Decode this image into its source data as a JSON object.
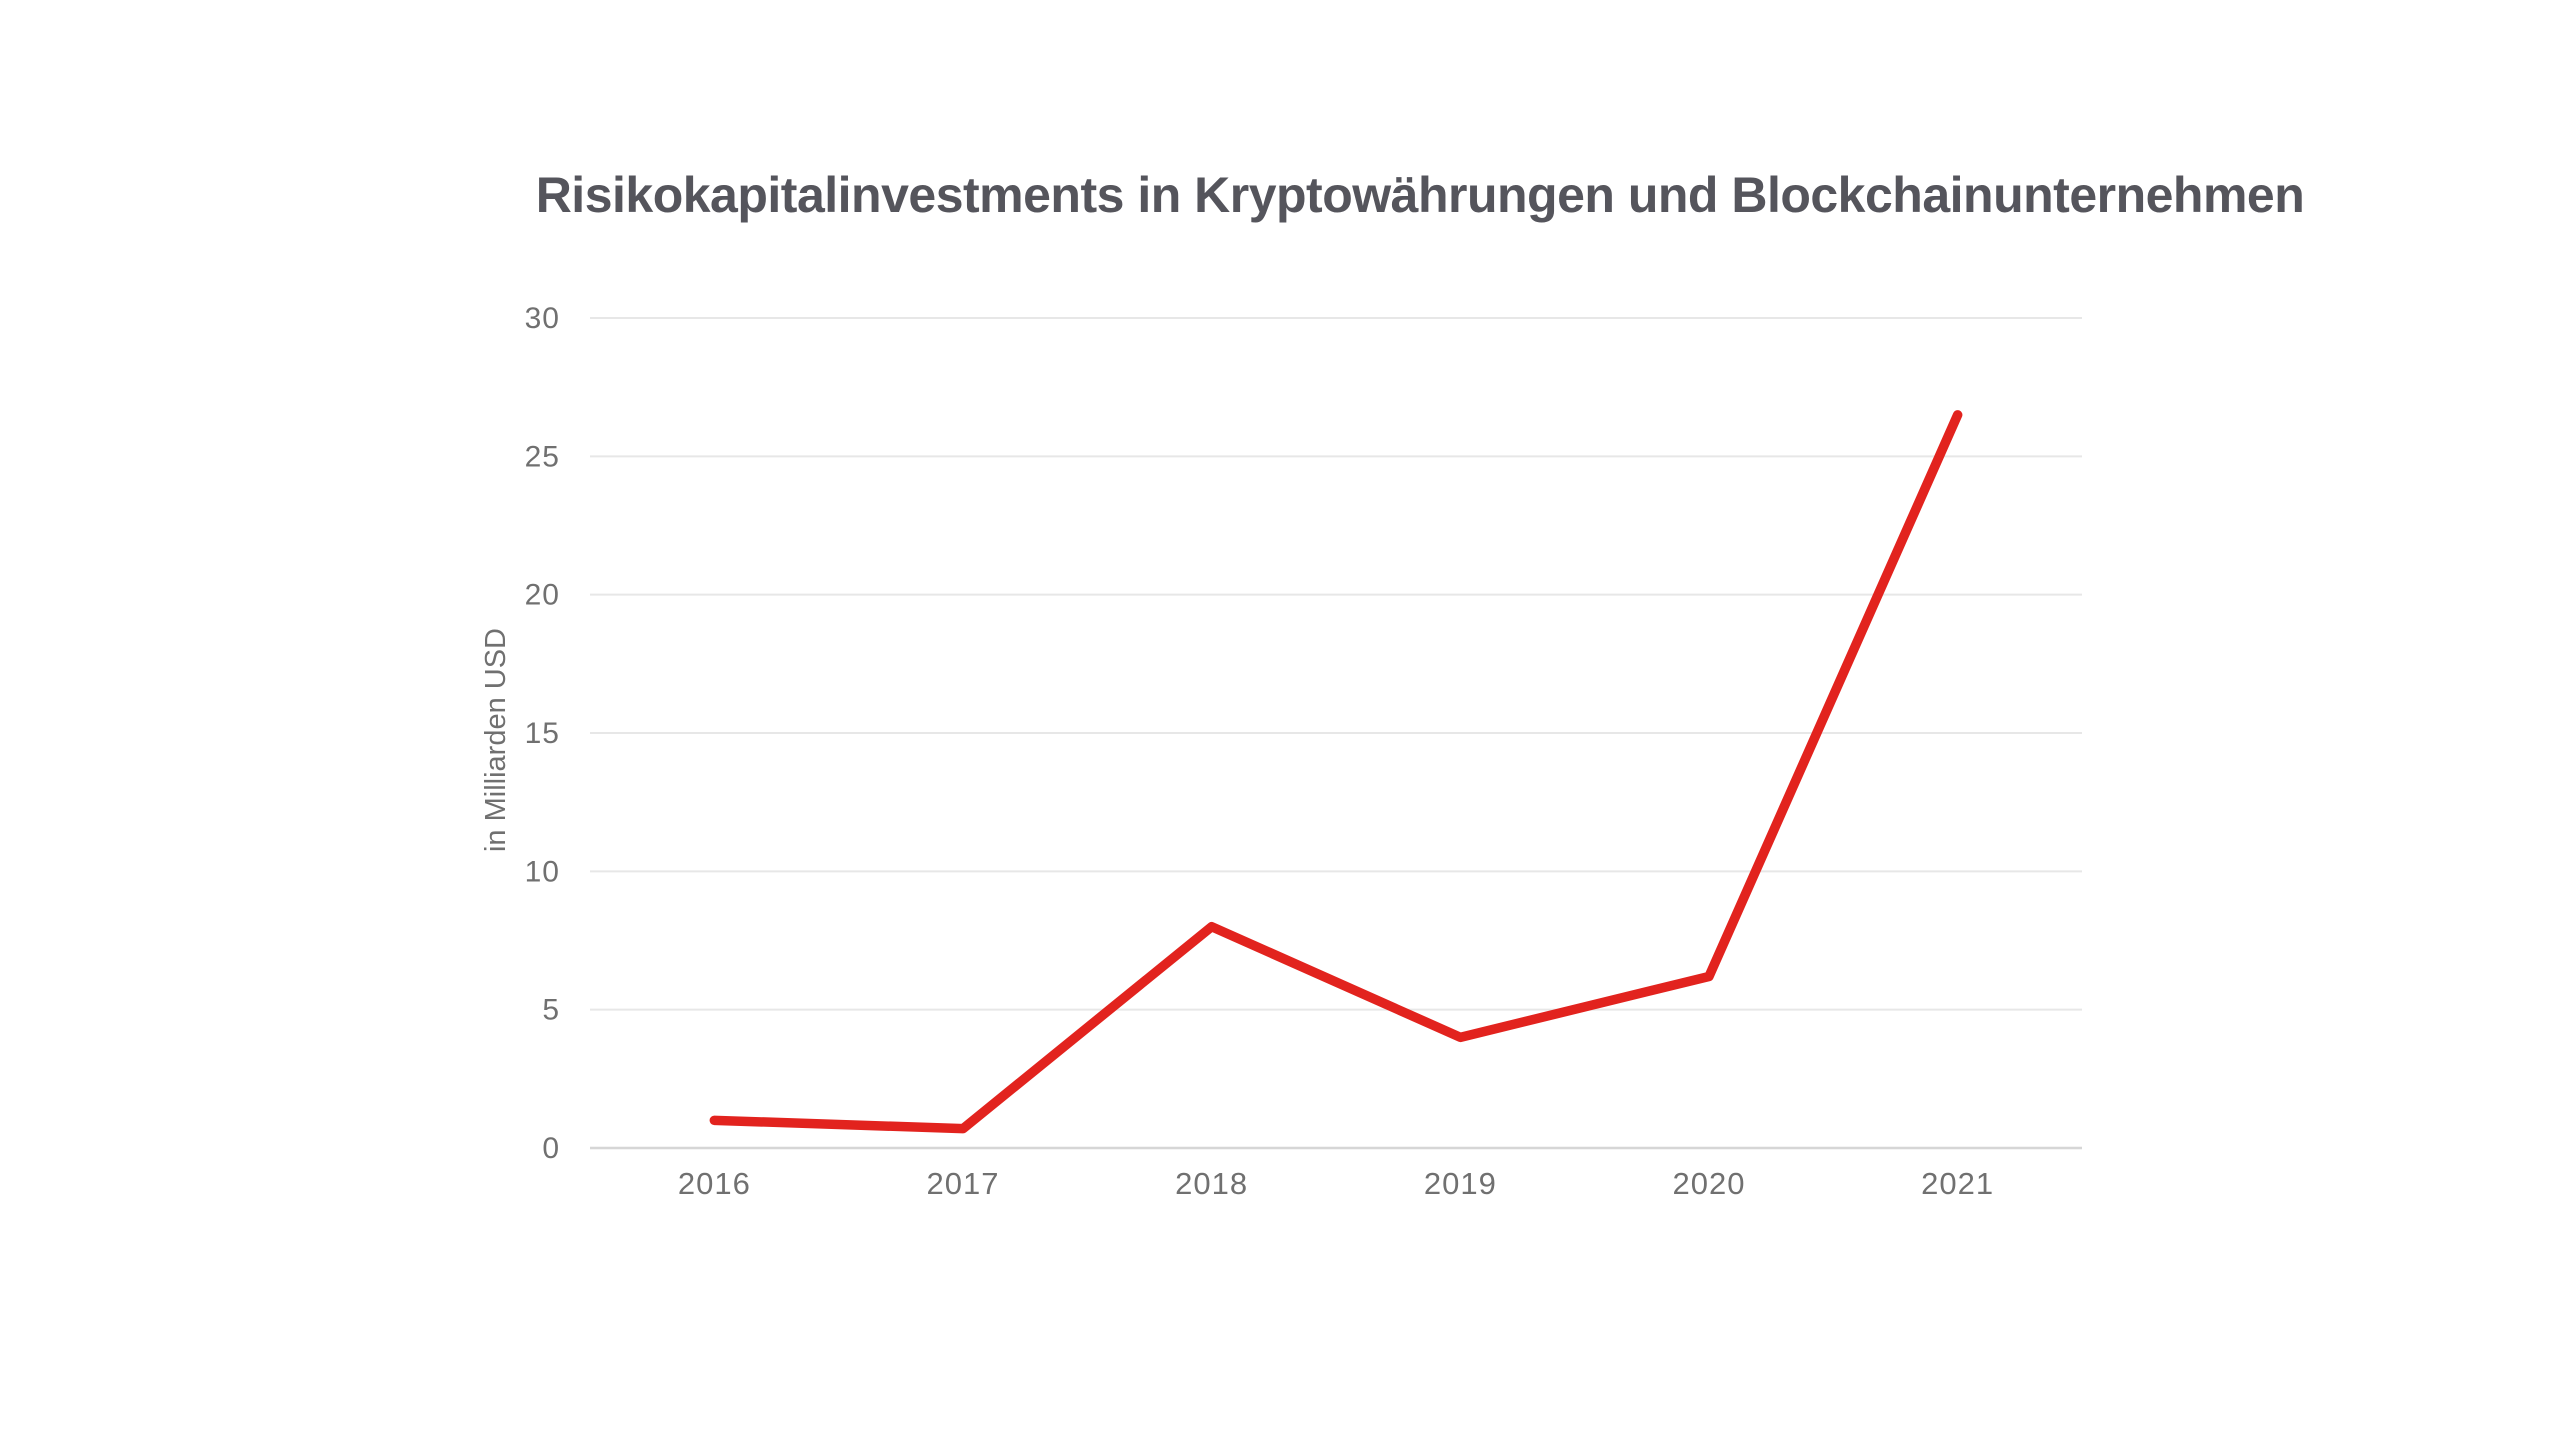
{
  "chart_data": {
    "type": "line",
    "title": "Risikokapitalinvestments in Kryptowährungen und Blockchainunternehmen",
    "ylabel": "in Milliarden USD",
    "xlabel": "",
    "categories": [
      "2016",
      "2017",
      "2018",
      "2019",
      "2020",
      "2021"
    ],
    "values": [
      1.0,
      0.7,
      8.0,
      4.0,
      6.2,
      26.5
    ],
    "ylim": [
      0,
      30
    ],
    "yticks": [
      0,
      5,
      10,
      15,
      20,
      25,
      30
    ],
    "grid": "horizontal",
    "legend": "none",
    "colors": {
      "line": "#e2231e",
      "title_text": "#55555c",
      "tick_text": "#707070",
      "gridline": "#e7e7e7",
      "axis_line": "#d6d6d6",
      "background": "#ffffff"
    }
  }
}
